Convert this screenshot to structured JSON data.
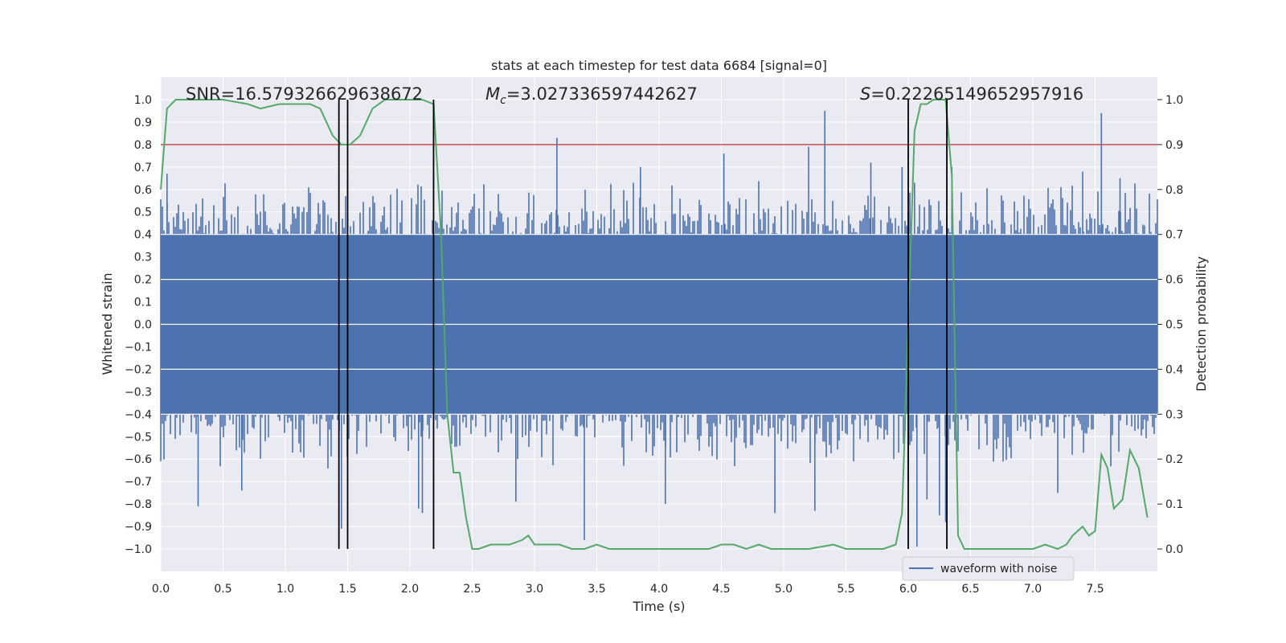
{
  "chart_data": {
    "type": "line",
    "title": "stats at each timestep for test data 6684 [signal=0]",
    "xlabel": "Time (s)",
    "ylabel_left": "Whitened strain",
    "ylabel_right": "Detection probability",
    "xlim": [
      0.0,
      8.0
    ],
    "ylim_left": [
      -1.1,
      1.1
    ],
    "ylim_right": [
      -0.05,
      1.05
    ],
    "x_ticks": [
      "0.0",
      "0.5",
      "1.0",
      "1.5",
      "2.0",
      "2.5",
      "3.0",
      "3.5",
      "4.0",
      "4.5",
      "5.0",
      "5.5",
      "6.0",
      "6.5",
      "7.0",
      "7.5"
    ],
    "y_ticks_left": [
      "-1.0",
      "-0.9",
      "-0.8",
      "-0.7",
      "-0.6",
      "-0.5",
      "-0.4",
      "-0.3",
      "-0.2",
      "-0.1",
      "0.0",
      "0.1",
      "0.2",
      "0.3",
      "0.4",
      "0.5",
      "0.6",
      "0.7",
      "0.8",
      "0.9",
      "1.0"
    ],
    "y_ticks_right": [
      "0.0",
      "0.1",
      "0.2",
      "0.3",
      "0.4",
      "0.5",
      "0.6",
      "0.7",
      "0.8",
      "0.9",
      "1.0"
    ],
    "grid": true,
    "legend": {
      "position": "lower-right",
      "entries": [
        "waveform with noise"
      ]
    },
    "annotations": {
      "snr": "SNR=16.579326629638672",
      "mc_symbol": "M",
      "mc_sub": "c",
      "mc_value": "=3.027336597442627",
      "s_symbol": "S",
      "s_value": "=0.22265149652957916"
    },
    "threshold": 0.9,
    "vertical_lines": [
      1.43,
      1.5,
      2.19,
      6.0,
      6.31
    ],
    "waveform": {
      "name": "waveform with noise",
      "color": "#4c72b0",
      "band_upper": 0.4,
      "band_lower": -0.4,
      "spikes": [
        [
          0.05,
          0.67
        ],
        [
          0.3,
          -0.81
        ],
        [
          0.65,
          -0.74
        ],
        [
          1.45,
          -0.91
        ],
        [
          1.5,
          0.65
        ],
        [
          2.07,
          -0.82
        ],
        [
          2.1,
          -0.84
        ],
        [
          3.18,
          0.83
        ],
        [
          3.4,
          -0.96
        ],
        [
          4.05,
          -0.8
        ],
        [
          4.52,
          0.76
        ],
        [
          5.2,
          0.79
        ],
        [
          5.33,
          0.95
        ],
        [
          5.95,
          0.7
        ],
        [
          6.0,
          -0.7
        ],
        [
          6.05,
          0.63
        ],
        [
          6.07,
          -0.99
        ],
        [
          6.3,
          -0.88
        ],
        [
          6.35,
          0.7
        ],
        [
          7.2,
          -0.75
        ],
        [
          7.4,
          0.68
        ],
        [
          7.55,
          0.94
        ],
        [
          7.7,
          0.65
        ],
        [
          6.15,
          -0.78
        ],
        [
          6.25,
          -0.85
        ],
        [
          3.85,
          0.7
        ],
        [
          2.85,
          -0.79
        ],
        [
          5.7,
          0.72
        ],
        [
          4.93,
          -0.84
        ],
        [
          5.25,
          -0.83
        ]
      ]
    },
    "probability": {
      "name": "detection probability",
      "color": "#55a868",
      "x": [
        0.0,
        0.05,
        0.12,
        0.3,
        0.5,
        0.7,
        0.8,
        0.95,
        1.1,
        1.2,
        1.28,
        1.38,
        1.45,
        1.52,
        1.6,
        1.7,
        1.8,
        2.0,
        2.1,
        2.19,
        2.25,
        2.3,
        2.35,
        2.4,
        2.45,
        2.5,
        2.55,
        2.65,
        2.8,
        2.9,
        2.95,
        3.0,
        3.1,
        3.2,
        3.3,
        3.4,
        3.5,
        3.6,
        3.8,
        4.0,
        4.2,
        4.4,
        4.5,
        4.6,
        4.7,
        4.8,
        4.9,
        5.0,
        5.2,
        5.4,
        5.5,
        5.6,
        5.8,
        5.9,
        5.95,
        6.0,
        6.05,
        6.1,
        6.15,
        6.2,
        6.25,
        6.3,
        6.35,
        6.4,
        6.45,
        6.5,
        6.6,
        7.0,
        7.1,
        7.2,
        7.27,
        7.32,
        7.4,
        7.45,
        7.5,
        7.55,
        7.6,
        7.65,
        7.72,
        7.78,
        7.85,
        7.92
      ],
      "y": [
        0.8,
        0.98,
        1.0,
        1.0,
        1.0,
        0.99,
        0.98,
        0.99,
        0.99,
        0.99,
        0.98,
        0.92,
        0.9,
        0.9,
        0.92,
        0.98,
        1.0,
        1.0,
        1.0,
        0.99,
        0.7,
        0.3,
        0.17,
        0.17,
        0.07,
        0.0,
        0.0,
        0.01,
        0.01,
        0.02,
        0.03,
        0.01,
        0.01,
        0.01,
        0.0,
        0.0,
        0.01,
        0.0,
        0.0,
        0.0,
        0.0,
        0.0,
        0.01,
        0.01,
        0.0,
        0.01,
        0.0,
        0.0,
        0.0,
        0.01,
        0.0,
        0.0,
        0.0,
        0.01,
        0.08,
        0.5,
        0.93,
        0.99,
        0.99,
        1.0,
        1.0,
        1.0,
        0.83,
        0.03,
        0.0,
        0.0,
        0.0,
        0.0,
        0.01,
        0.0,
        0.01,
        0.03,
        0.05,
        0.03,
        0.04,
        0.21,
        0.18,
        0.09,
        0.11,
        0.22,
        0.18,
        0.07
      ]
    },
    "threshold_color": "#c44e52",
    "vline_color": "#000000"
  }
}
